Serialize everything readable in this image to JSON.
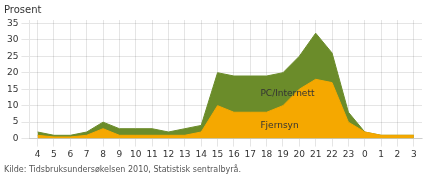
{
  "chart_data": {
    "type": "area",
    "ylabel": "Prosent",
    "subtitle": "Kilde: Tidsbruksundersøkelsen 2010, Statistisk sentralbyrå.",
    "categories": [
      "4",
      "5",
      "6",
      "7",
      "8",
      "9",
      "10",
      "11",
      "12",
      "13",
      "14",
      "15",
      "16",
      "17",
      "18",
      "19",
      "20",
      "21",
      "22",
      "23",
      "0",
      "1",
      "2",
      "3"
    ],
    "series": [
      {
        "name": "PC/Internett",
        "color": "#6b8c2a",
        "values": [
          2,
          1,
          1,
          2,
          5,
          3,
          3,
          3,
          2,
          3,
          4,
          20,
          19,
          19,
          19,
          20,
          25,
          32,
          26,
          8,
          2,
          1,
          1,
          1
        ]
      },
      {
        "name": "Fjernsyn",
        "color": "#f5a800",
        "values": [
          1,
          0.5,
          0.5,
          1,
          3,
          1,
          1,
          1,
          1,
          1,
          2,
          10,
          8,
          8,
          8,
          10,
          15,
          18,
          17,
          5,
          2,
          1,
          1,
          1
        ]
      }
    ],
    "ylim": [
      0,
      36
    ],
    "yticks": [
      0,
      5,
      10,
      15,
      20,
      25,
      30,
      35
    ],
    "grid": true
  }
}
